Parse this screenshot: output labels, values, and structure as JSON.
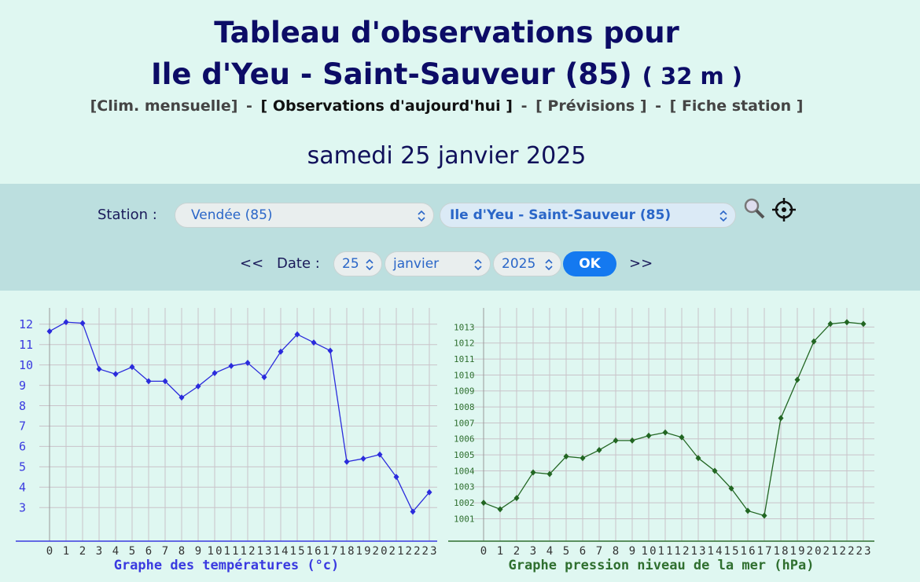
{
  "header": {
    "title_line1": "Tableau d'observations pour",
    "title_line2": "Ile d'Yeu - Saint-Sauveur (85)",
    "altitude": "( 32 m )",
    "links": [
      "[Clim. mensuelle]",
      "[ Observations d'aujourd'hui ]",
      "[ Prévisions ]",
      "[ Fiche station ]"
    ],
    "separator": "-",
    "date": "samedi 25 janvier 2025"
  },
  "form": {
    "station_label": "Station :",
    "department": "Vendée (85)",
    "station": "Ile d'Yeu - Saint-Sauveur (85)",
    "prev": "<<",
    "date_label": "Date :",
    "day": "25",
    "month": "janvier",
    "year": "2025",
    "ok": "OK",
    "next": ">>"
  },
  "chart_data": [
    {
      "type": "line",
      "title": "Graphe des températures (°c)",
      "color": "#2b2bdc",
      "axis_color": "#3a3ae0",
      "categories": [
        "0",
        "1",
        "2",
        "3",
        "4",
        "5",
        "6",
        "7",
        "8",
        "9",
        "10",
        "11",
        "12",
        "13",
        "14",
        "15",
        "16",
        "17",
        "18",
        "19",
        "20",
        "21",
        "22",
        "23"
      ],
      "values": [
        11.65,
        12.1,
        12.05,
        9.8,
        9.55,
        9.9,
        9.2,
        9.2,
        8.4,
        8.95,
        9.6,
        9.95,
        10.1,
        9.4,
        10.65,
        11.5,
        11.1,
        10.7,
        5.25,
        5.4,
        5.6,
        4.5,
        2.8,
        3.75
      ],
      "ylim": [
        1.35,
        12.8
      ],
      "yticks": [
        3,
        4,
        5,
        6,
        7,
        8,
        9,
        10,
        11,
        12
      ],
      "grid": true
    },
    {
      "type": "line",
      "title": "Graphe pression niveau de la mer (hPa)",
      "color": "#226622",
      "axis_color": "#2f6f2f",
      "categories": [
        "0",
        "1",
        "2",
        "3",
        "4",
        "5",
        "6",
        "7",
        "8",
        "9",
        "10",
        "11",
        "12",
        "13",
        "14",
        "15",
        "16",
        "17",
        "18",
        "19",
        "20",
        "21",
        "22",
        "23"
      ],
      "values": [
        1002.0,
        1001.6,
        1002.3,
        1003.9,
        1003.8,
        1004.9,
        1004.8,
        1005.3,
        1005.9,
        1005.9,
        1006.2,
        1006.4,
        1006.1,
        1004.8,
        1004.0,
        1002.9,
        1001.5,
        1001.2,
        1007.3,
        1009.7,
        1012.1,
        1013.2,
        1013.3,
        1013.2
      ],
      "ylim": [
        999.6,
        1014.2
      ],
      "yticks": [
        1001,
        1002,
        1003,
        1004,
        1005,
        1006,
        1007,
        1008,
        1009,
        1010,
        1011,
        1012,
        1013
      ],
      "grid": true
    }
  ]
}
